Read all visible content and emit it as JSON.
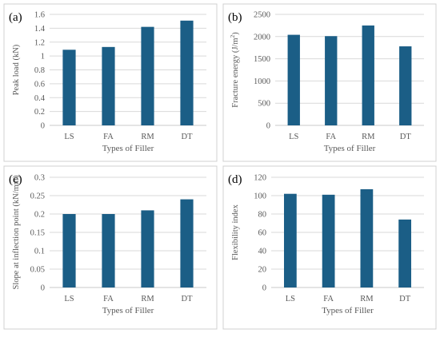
{
  "colors": {
    "bar": "#1b5e86",
    "grid": "#d9d9d9",
    "axis": "#c8c8c8",
    "text": "#595959",
    "panel_border": "#d0d0d0"
  },
  "chart_data": [
    {
      "type": "bar",
      "panel_label": "(a)",
      "categories": [
        "LS",
        "FA",
        "RM",
        "DT"
      ],
      "values": [
        1.09,
        1.13,
        1.42,
        1.51
      ],
      "xlabel": "Types of Filler",
      "ylabel": "Peak load (kN)",
      "ylabel_sup": "",
      "ylabel_tail": "",
      "ylim": [
        0,
        1.6
      ],
      "yticks": [
        "0",
        "0.2",
        "0.4",
        "0.6",
        "0.8",
        "1",
        "1.2",
        "1.4",
        "1.6"
      ],
      "grid": true
    },
    {
      "type": "bar",
      "panel_label": "(b)",
      "categories": [
        "LS",
        "FA",
        "RM",
        "DT"
      ],
      "values": [
        2040,
        2010,
        2250,
        1780
      ],
      "xlabel": "Types of Filler",
      "ylabel": "Fracture energy (J/m",
      "ylabel_sup": "2",
      "ylabel_tail": ")",
      "ylim": [
        0,
        2500
      ],
      "yticks": [
        "0",
        "500",
        "1000",
        "1500",
        "2000",
        "2500"
      ],
      "grid": true
    },
    {
      "type": "bar",
      "panel_label": "(c)",
      "categories": [
        "LS",
        "FA",
        "RM",
        "DT"
      ],
      "values": [
        0.2,
        0.2,
        0.21,
        0.24
      ],
      "xlabel": "Types of Filler",
      "ylabel": "Slope at inflection point (kN/mm)",
      "ylabel_sup": "",
      "ylabel_tail": "",
      "ylim": [
        0,
        0.3
      ],
      "yticks": [
        "0",
        "0.05",
        "0.1",
        "0.15",
        "0.2",
        "0.25",
        "0.3"
      ],
      "grid": true
    },
    {
      "type": "bar",
      "panel_label": "(d)",
      "categories": [
        "LS",
        "FA",
        "RM",
        "DT"
      ],
      "values": [
        102,
        101,
        107,
        74
      ],
      "xlabel": "Types of Filler",
      "ylabel": "Flexibility index",
      "ylabel_sup": "",
      "ylabel_tail": "",
      "ylim": [
        0,
        120
      ],
      "yticks": [
        "0",
        "20",
        "40",
        "60",
        "80",
        "100",
        "120"
      ],
      "grid": true
    }
  ]
}
